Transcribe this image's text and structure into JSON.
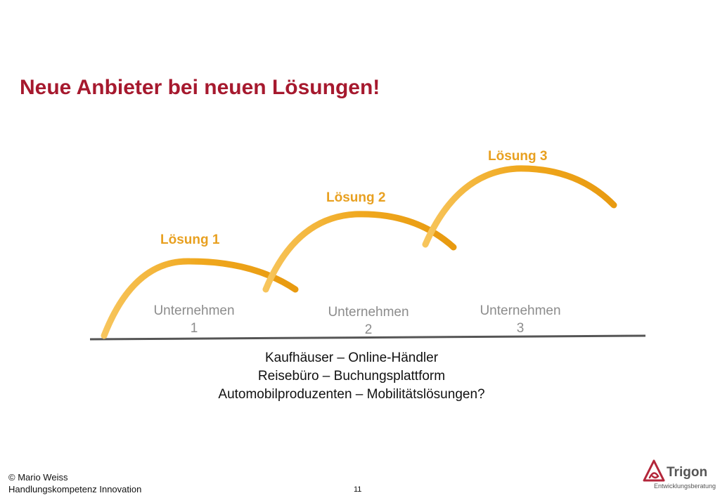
{
  "title": "Neue Anbieter bei neuen Lösungen!",
  "solutions": [
    {
      "label": "Lösung 1",
      "company_line1": "Unternehmen",
      "company_line2": "1"
    },
    {
      "label": "Lösung 2",
      "company_line1": "Unternehmen",
      "company_line2": "2"
    },
    {
      "label": "Lösung 3",
      "company_line1": "Unternehmen",
      "company_line2": "3"
    }
  ],
  "examples": [
    "Kaufhäuser – Online-Händler",
    "Reisebüro – Buchungsplattform",
    "Automobilproduzenten – Mobilitätslösungen?"
  ],
  "footer": {
    "copyright": "© Mario Weiss",
    "subtitle": "Handlungskompetenz Innovation",
    "page_number": "11"
  },
  "logo": {
    "name": "Trigon",
    "tagline": "Entwicklungsberatung"
  },
  "colors": {
    "title": "#a6192e",
    "arc": "#f0a81e",
    "company": "#8c8c8c"
  }
}
